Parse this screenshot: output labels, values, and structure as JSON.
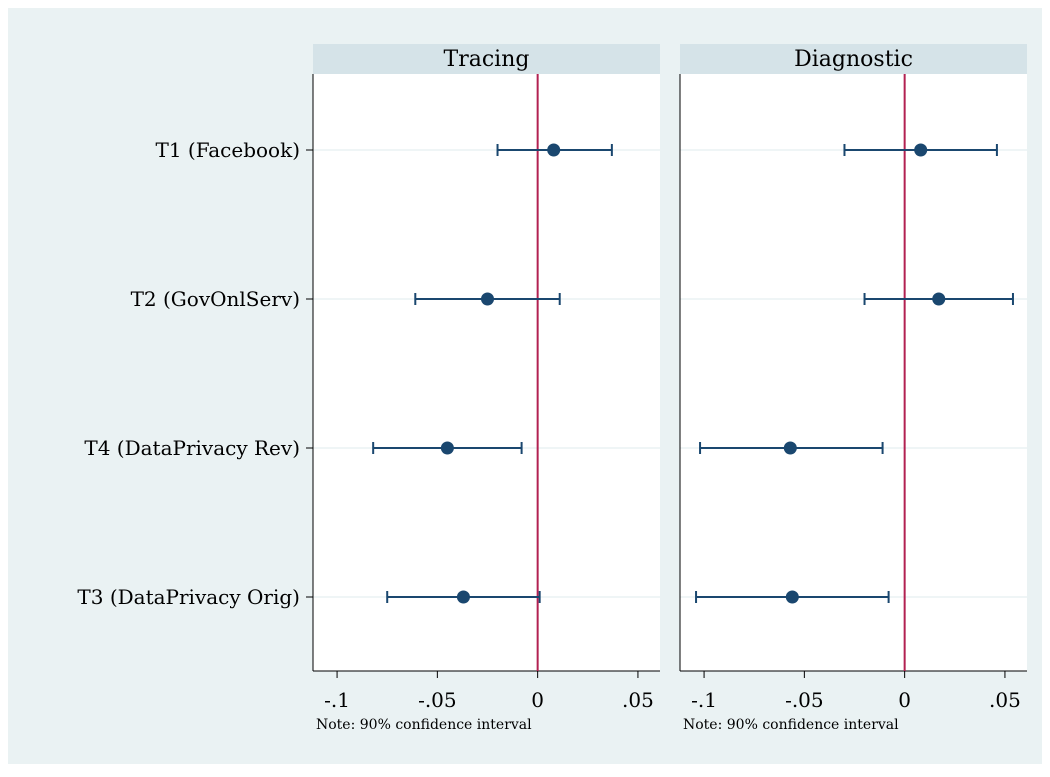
{
  "chart_data": {
    "type": "coefficient-plot",
    "categories": [
      "T1 (Facebook)",
      "T2 (GovOnlServ)",
      "T4 (DataPrivacy Rev)",
      "T3 (DataPrivacy Orig)"
    ],
    "x_ticks": [
      -0.1,
      -0.05,
      0,
      0.05
    ],
    "x_tick_labels": [
      "-.1",
      "-.05",
      "0",
      ".05"
    ],
    "xlim": [
      -0.112,
      0.061
    ],
    "reference_line": 0,
    "note": "Note: 90% confidence interval",
    "grid": true,
    "panels": [
      {
        "title": "Tracing",
        "estimates": [
          0.008,
          -0.025,
          -0.045,
          -0.037
        ],
        "ci_low": [
          -0.02,
          -0.061,
          -0.082,
          -0.075
        ],
        "ci_high": [
          0.037,
          0.011,
          -0.008,
          0.001
        ]
      },
      {
        "title": "Diagnostic",
        "estimates": [
          0.008,
          0.017,
          -0.057,
          -0.056
        ],
        "ci_low": [
          -0.03,
          -0.02,
          -0.102,
          -0.104
        ],
        "ci_high": [
          0.046,
          0.054,
          -0.011,
          -0.008
        ]
      }
    ]
  },
  "colors": {
    "background_outer": "#eaf2f3",
    "strip": "#d5e3e8",
    "marker": "#1a476f",
    "reference_line": "#b22151",
    "grid": "#eaf2f3"
  }
}
